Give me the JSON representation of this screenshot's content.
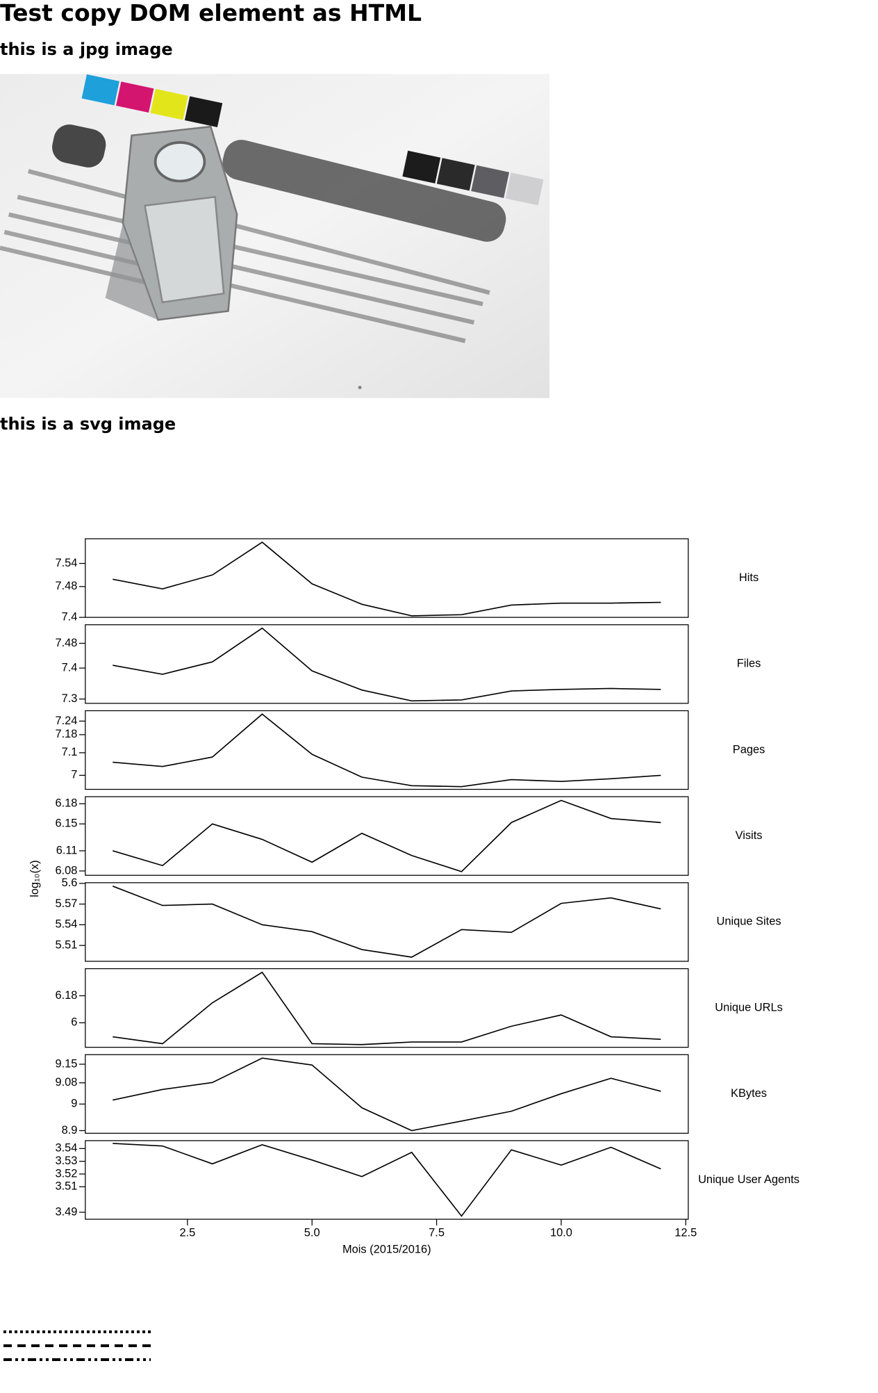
{
  "header": {
    "title": "Test copy DOM element as HTML"
  },
  "sections": [
    {
      "heading": "this is a jpg image"
    },
    {
      "heading": "this is a svg image"
    }
  ],
  "figure": {
    "ylabel": "log₁₀(x)"
  },
  "chart_data": [
    {
      "type": "line",
      "title": "Hits",
      "color": "#000000",
      "x": [
        1,
        2,
        3,
        4,
        5,
        6,
        7,
        8,
        9,
        10,
        11,
        12
      ],
      "values": [
        7.499,
        7.474,
        7.51,
        7.595,
        7.487,
        7.434,
        7.404,
        7.407,
        7.432,
        7.437,
        7.437,
        7.439
      ],
      "ylim": [
        7.4,
        7.604
      ],
      "yticks": [
        7.4,
        7.48,
        7.54
      ]
    },
    {
      "type": "line",
      "title": "Files",
      "color": "#000000",
      "x": [
        1,
        2,
        3,
        4,
        5,
        6,
        7,
        8,
        9,
        10,
        11,
        12
      ],
      "values": [
        7.409,
        7.38,
        7.42,
        7.529,
        7.391,
        7.329,
        7.294,
        7.297,
        7.326,
        7.331,
        7.334,
        7.331
      ],
      "ylim": [
        7.286,
        7.54
      ],
      "yticks": [
        7.3,
        7.4,
        7.48
      ]
    },
    {
      "type": "line",
      "title": "Pages",
      "color": "#000000",
      "x": [
        1,
        2,
        3,
        4,
        5,
        6,
        7,
        8,
        9,
        10,
        11,
        12
      ],
      "values": [
        7.058,
        7.039,
        7.081,
        7.271,
        7.093,
        6.992,
        6.954,
        6.95,
        6.981,
        6.973,
        6.985,
        7.0
      ],
      "ylim": [
        6.938,
        7.286
      ],
      "yticks": [
        7,
        7.1,
        7.18,
        7.24
      ]
    },
    {
      "type": "line",
      "title": "Visits",
      "color": "#000000",
      "x": [
        1,
        2,
        3,
        4,
        5,
        6,
        7,
        8,
        9,
        10,
        11,
        12
      ],
      "values": [
        6.11,
        6.088,
        6.15,
        6.127,
        6.093,
        6.136,
        6.103,
        6.079,
        6.152,
        6.185,
        6.158,
        6.152
      ],
      "ylim": [
        6.0735,
        6.1905
      ],
      "yticks": [
        6.08,
        6.11,
        6.15,
        6.18
      ]
    },
    {
      "type": "line",
      "title": "Unique Sites",
      "color": "#000000",
      "x": [
        1,
        2,
        3,
        4,
        5,
        6,
        7,
        8,
        9,
        10,
        11,
        12
      ],
      "values": [
        5.596,
        5.568,
        5.57,
        5.54,
        5.53,
        5.504,
        5.493,
        5.533,
        5.529,
        5.571,
        5.579,
        5.563
      ],
      "ylim": [
        5.487,
        5.601
      ],
      "yticks": [
        5.51,
        5.54,
        5.57,
        5.6
      ]
    },
    {
      "type": "line",
      "title": "Unique URLs",
      "color": "#000000",
      "x": [
        1,
        2,
        3,
        4,
        5,
        6,
        7,
        8,
        9,
        10,
        11,
        12
      ],
      "values": [
        5.907,
        5.861,
        6.133,
        6.336,
        5.861,
        5.855,
        5.872,
        5.872,
        5.977,
        6.052,
        5.907,
        5.89
      ],
      "ylim": [
        5.837,
        6.36
      ],
      "yticks": [
        6,
        6.18
      ]
    },
    {
      "type": "line",
      "title": "KBytes",
      "color": "#000000",
      "x": [
        1,
        2,
        3,
        4,
        5,
        6,
        7,
        8,
        9,
        10,
        11,
        12
      ],
      "values": [
        9.015,
        9.055,
        9.081,
        9.173,
        9.147,
        8.986,
        8.9,
        8.936,
        8.973,
        9.039,
        9.097,
        9.048
      ],
      "ylim": [
        8.89,
        9.186
      ],
      "yticks": [
        8.9,
        9,
        9.08,
        9.15
      ]
    },
    {
      "type": "line",
      "title": "Unique User Agents",
      "color": "#000000",
      "x": [
        1,
        2,
        3,
        4,
        5,
        6,
        7,
        8,
        9,
        10,
        11,
        12
      ],
      "values": [
        3.544,
        3.542,
        3.528,
        3.543,
        3.531,
        3.518,
        3.537,
        3.487,
        3.539,
        3.527,
        3.541,
        3.524
      ],
      "ylim": [
        3.4845,
        3.5462
      ],
      "yticks": [
        3.49,
        3.51,
        3.52,
        3.53,
        3.54
      ],
      "xlabel": "Mois (2015/2016)",
      "xlim": [
        0.45,
        12.55
      ],
      "xticks": [
        2.5,
        {
          "value": 5,
          "label": "5.0"
        },
        7.5,
        {
          "value": 10,
          "label": "10.0"
        },
        12.5
      ]
    }
  ]
}
